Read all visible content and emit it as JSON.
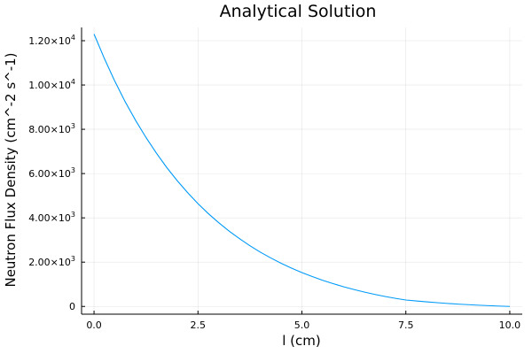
{
  "chart_data": {
    "type": "line",
    "title": "Analytical Solution",
    "xlabel": "l (cm)",
    "ylabel": "Neutron Flux Density (cm^-2 s^-1)",
    "xlim": [
      -0.3,
      10.3
    ],
    "ylim": [
      -350,
      12600
    ],
    "grid": true,
    "legend": "none",
    "x_ticks": [
      {
        "value": 0,
        "label": "0.0"
      },
      {
        "value": 2.5,
        "label": "2.5"
      },
      {
        "value": 5,
        "label": "5.0"
      },
      {
        "value": 7.5,
        "label": "7.5"
      },
      {
        "value": 10,
        "label": "10.0"
      }
    ],
    "y_ticks": [
      {
        "value": 0,
        "mantissa": "0",
        "exp": ""
      },
      {
        "value": 2000,
        "mantissa": "2.00×10",
        "exp": "3"
      },
      {
        "value": 4000,
        "mantissa": "4.00×10",
        "exp": "3"
      },
      {
        "value": 6000,
        "mantissa": "6.00×10",
        "exp": "3"
      },
      {
        "value": 8000,
        "mantissa": "8.00×10",
        "exp": "3"
      },
      {
        "value": 10000,
        "mantissa": "1.00×10",
        "exp": "4"
      },
      {
        "value": 12000,
        "mantissa": "1.20×10",
        "exp": "4"
      }
    ],
    "series": [
      {
        "color": "#009af9",
        "x": [
          0,
          0.25,
          0.5,
          0.75,
          1.0,
          1.25,
          1.5,
          1.75,
          2.0,
          2.25,
          2.5,
          2.75,
          3.0,
          3.25,
          3.5,
          3.75,
          4.0,
          4.25,
          4.5,
          4.75,
          5.0,
          5.25,
          5.5,
          5.75,
          6.0,
          6.25,
          6.5,
          6.75,
          7.0,
          7.25,
          7.5,
          7.75,
          8.0,
          8.25,
          8.5,
          8.75,
          9.0,
          9.25,
          9.5,
          9.75,
          10.0
        ],
        "y": [
          12300,
          11190,
          10170,
          9240,
          8400,
          7630,
          6920,
          6270,
          5680,
          5140,
          4640,
          4190,
          3780,
          3400,
          3060,
          2740,
          2450,
          2190,
          1950,
          1730,
          1530,
          1350,
          1180,
          1030,
          890,
          765,
          650,
          545,
          450,
          365,
          290,
          245,
          205,
          170,
          135,
          105,
          80,
          55,
          35,
          15,
          0
        ]
      }
    ]
  }
}
